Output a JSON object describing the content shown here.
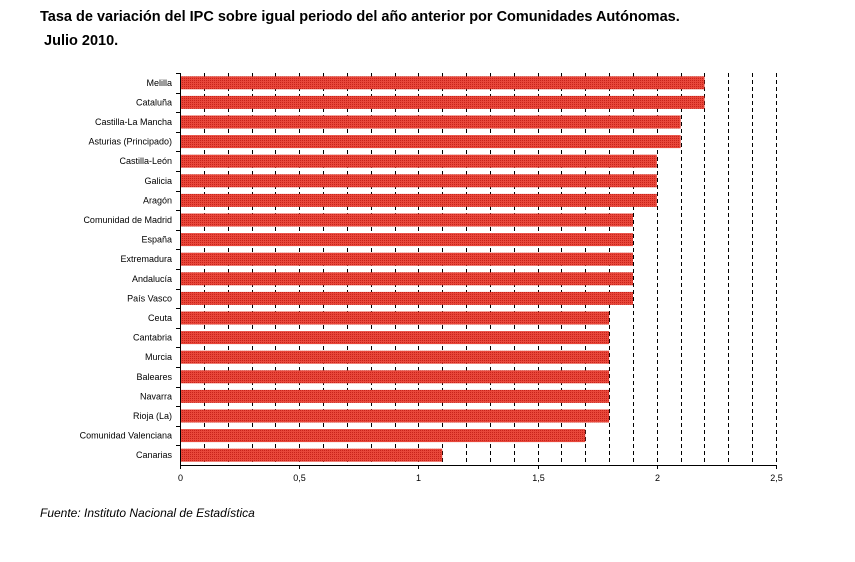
{
  "title": {
    "line1": "Tasa de variación del IPC sobre igual periodo del año anterior por Comunidades Autónomas.",
    "line2": " Julio 2010."
  },
  "source": "Fuente: Instituto Nacional de Estadística",
  "chart_data": {
    "type": "bar",
    "orientation": "horizontal",
    "categories": [
      "Melilla",
      "Cataluña",
      "Castilla-La Mancha",
      "Asturias (Principado)",
      "Castilla-León",
      "Galicia",
      "Aragón",
      "Comunidad de Madrid",
      "España",
      "Extremadura",
      "Andalucía",
      "País Vasco",
      "Ceuta",
      "Cantabria",
      "Murcia",
      "Baleares",
      "Navarra",
      "Rioja (La)",
      "Comunidad Valenciana",
      "Canarias"
    ],
    "values": [
      2.2,
      2.2,
      2.1,
      2.1,
      2.0,
      2.0,
      2.0,
      1.9,
      1.9,
      1.9,
      1.9,
      1.9,
      1.8,
      1.8,
      1.8,
      1.8,
      1.8,
      1.8,
      1.7,
      1.1
    ],
    "xlim": [
      0,
      2.5
    ],
    "xticks": [
      0,
      0.5,
      1,
      1.5,
      2,
      2.5
    ],
    "xtick_labels": [
      "0",
      "0,5",
      "1",
      "1,5",
      "2",
      "2,5"
    ],
    "grid": "vertical dashed lines every 0.1",
    "bar_color": "#e8473a",
    "legend": "none"
  }
}
